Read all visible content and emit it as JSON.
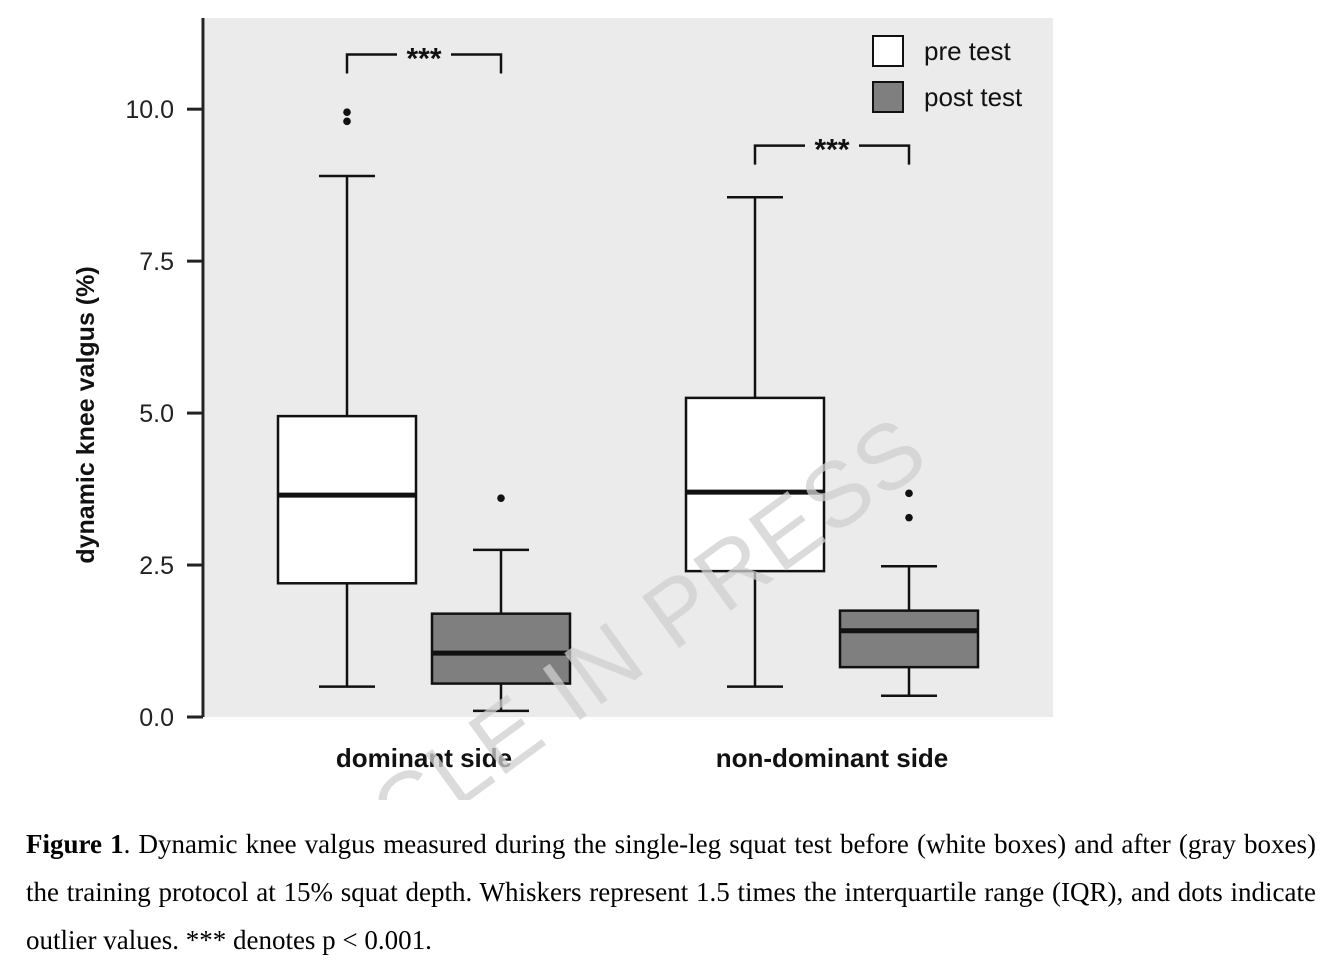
{
  "chart_data": {
    "type": "boxplot",
    "ylabel": "dynamic knee valgus (%)",
    "ylim": [
      0,
      11.5
    ],
    "yticks": [
      "0.0",
      "2.5",
      "5.0",
      "7.5",
      "10.0"
    ],
    "categories": [
      "dominant side",
      "non-dominant side"
    ],
    "legend": {
      "position": "top-right",
      "items": [
        {
          "label": "pre test",
          "color": "#ffffff"
        },
        {
          "label": "post test",
          "color": "#7f7f7f"
        }
      ]
    },
    "series": [
      {
        "name": "pre test",
        "color": "#ffffff",
        "boxes": [
          {
            "whisker_low": 0.5,
            "q1": 2.2,
            "median": 3.65,
            "q3": 4.95,
            "whisker_high": 8.9,
            "outliers": [
              9.8,
              9.95
            ]
          },
          {
            "whisker_low": 0.5,
            "q1": 2.4,
            "median": 3.7,
            "q3": 5.25,
            "whisker_high": 8.55,
            "outliers": []
          }
        ]
      },
      {
        "name": "post test",
        "color": "#7f7f7f",
        "boxes": [
          {
            "whisker_low": 0.1,
            "q1": 0.55,
            "median": 1.05,
            "q3": 1.7,
            "whisker_high": 2.75,
            "outliers": [
              3.6
            ]
          },
          {
            "whisker_low": 0.35,
            "q1": 0.82,
            "median": 1.42,
            "q3": 1.75,
            "whisker_high": 2.48,
            "outliers": [
              3.28,
              3.68
            ]
          }
        ]
      }
    ],
    "significance": [
      {
        "category": "dominant side",
        "label": "***",
        "y": 10.9
      },
      {
        "category": "non-dominant side",
        "label": "***",
        "y": 9.4
      }
    ],
    "background": "#ebebeb"
  },
  "watermark": "ARTICLE IN PRESS",
  "caption": {
    "label": "Figure 1",
    "text": ". Dynamic knee valgus measured during the single-leg squat test before (white boxes) and after (gray boxes) the training protocol at 15% squat depth. Whiskers represent 1.5 times the interquartile range (IQR), and dots indicate outlier values. *** denotes p < 0.001."
  }
}
